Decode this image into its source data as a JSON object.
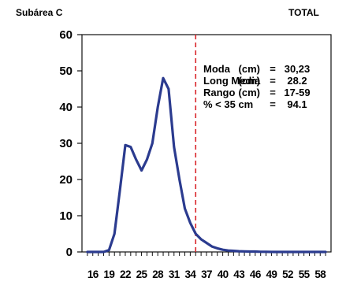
{
  "header": {
    "left": "Subárea C",
    "right": "TOTAL"
  },
  "colors": {
    "series": "#2b3b8f",
    "vline": "#d9262c",
    "axis": "#111111"
  },
  "chart_data": {
    "type": "line",
    "title": "",
    "xlabel": "",
    "ylabel": "",
    "xlim": [
      14,
      60
    ],
    "ylim": [
      0,
      60
    ],
    "grid": false,
    "yticks": [
      0,
      10,
      20,
      30,
      40,
      50,
      60
    ],
    "xtick_values": [
      16,
      19,
      22,
      25,
      28,
      31,
      34,
      37,
      40,
      43,
      46,
      49,
      52,
      55,
      58
    ],
    "xtick_labels": [
      "16",
      "19",
      "22",
      "25",
      "28",
      "31",
      "34",
      "37",
      "40",
      "43",
      "46",
      "49",
      "52",
      "55",
      "58"
    ],
    "reference_line": {
      "x": 35,
      "style": "dashed"
    },
    "series": [
      {
        "x": [
          15,
          16,
          17,
          18,
          19,
          20,
          21,
          22,
          23,
          24,
          25,
          26,
          27,
          28,
          29,
          30,
          31,
          32,
          33,
          34,
          35,
          36,
          37,
          38,
          39,
          40,
          41,
          42,
          43,
          44,
          45,
          46,
          47,
          48,
          49,
          50,
          51,
          52,
          53,
          54,
          55,
          56,
          57,
          58,
          59
        ],
        "values": [
          0,
          0,
          0,
          0,
          0.5,
          5,
          17,
          29.5,
          29,
          25.5,
          22.5,
          25.5,
          30,
          40,
          48,
          45,
          29,
          20,
          12,
          8,
          5,
          3.5,
          2.5,
          1.5,
          1,
          0.6,
          0.4,
          0.3,
          0.2,
          0.15,
          0.1,
          0.1,
          0.05,
          0.05,
          0,
          0,
          0,
          0,
          0,
          0,
          0,
          0,
          0,
          0,
          0
        ]
      }
    ],
    "annotations": [
      {
        "label": "Moda",
        "unit": "(cm)",
        "eq": "=",
        "value": "30,23"
      },
      {
        "label": "Long Media",
        "unit": "(cm)",
        "eq": "=",
        "value": "28.2"
      },
      {
        "label": "Rango",
        "unit": "(cm)",
        "eq": "=",
        "value": "17-59"
      },
      {
        "label": "% < 35 cm",
        "unit": "",
        "eq": "=",
        "value": "94.1"
      }
    ]
  }
}
